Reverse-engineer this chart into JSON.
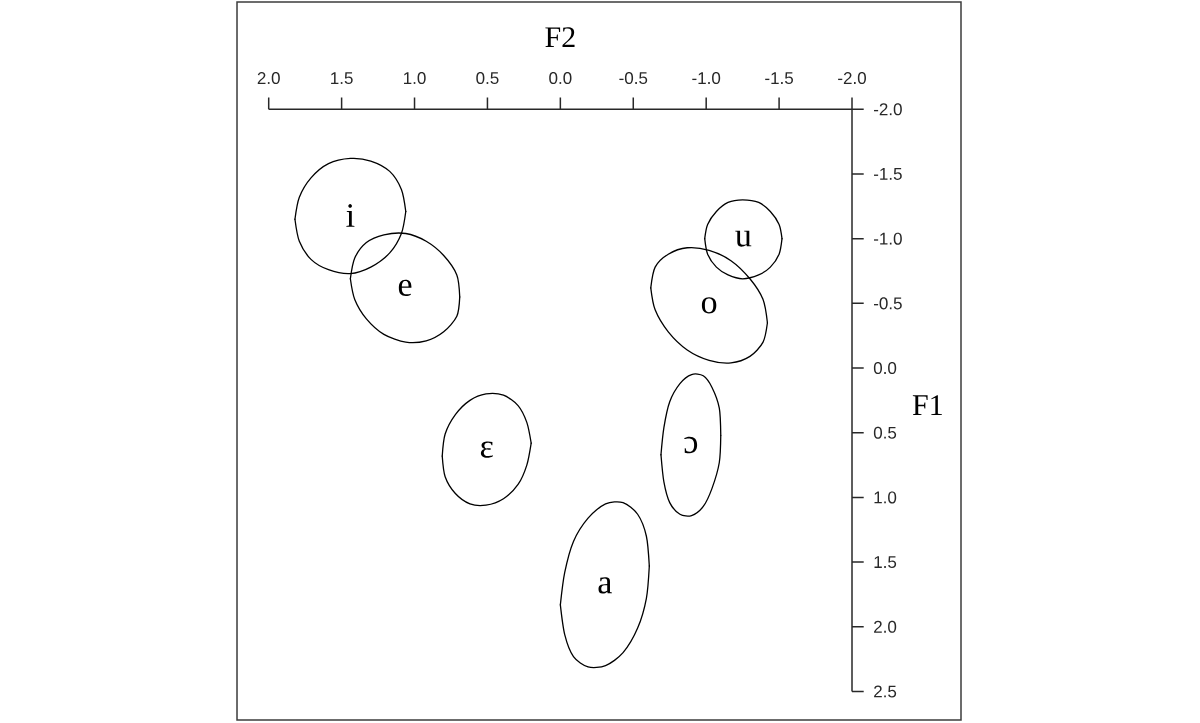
{
  "chart_data": {
    "type": "line",
    "xlabel": "F2",
    "ylabel": "F1",
    "xlim": [
      2.0,
      -2.0
    ],
    "ylim": [
      2.5,
      -2.0
    ],
    "xticks": [
      {
        "value": 2,
        "label": "2.0"
      },
      1.5,
      {
        "value": 1,
        "label": "1.0"
      },
      0.5,
      {
        "value": 0,
        "label": "0.0"
      },
      -0.5,
      {
        "value": -1,
        "label": "-1.0"
      },
      -1.5,
      {
        "value": -2,
        "label": "-2.0"
      }
    ],
    "yticks": [
      {
        "value": -2,
        "label": "-2.0"
      },
      -1.5,
      {
        "value": -1,
        "label": "-1.0"
      },
      -0.5,
      {
        "value": 0,
        "label": "0.0"
      },
      0.5,
      {
        "value": 1,
        "label": "1.0"
      },
      1.5,
      {
        "value": 2,
        "label": "2.0"
      },
      2.5
    ],
    "series": [
      {
        "name": "i",
        "color": "#000000",
        "x": [
          1.06,
          1.09,
          1.17,
          1.3,
          1.44,
          1.59,
          1.71,
          1.79,
          1.82
        ],
        "values": [
          -1.21,
          -1.04,
          -0.89,
          -0.78,
          -0.73,
          -0.76,
          -0.84,
          -0.98,
          -1.15
        ]
      },
      {
        "color": "#000000",
        "x": [
          1.82,
          1.79,
          1.71,
          1.59,
          1.44,
          1.3,
          1.17,
          1.09,
          1.06
        ],
        "values": [
          -1.15,
          -1.32,
          -1.47,
          -1.58,
          -1.62,
          -1.6,
          -1.52,
          -1.38,
          -1.21
        ]
      },
      {
        "name": "e",
        "color": "#000000",
        "x": [
          0.69,
          0.71,
          0.8,
          0.92,
          1.06,
          1.21,
          1.33,
          1.41,
          1.44
        ],
        "values": [
          -0.55,
          -0.4,
          -0.28,
          -0.21,
          -0.2,
          -0.26,
          -0.38,
          -0.53,
          -0.69
        ]
      },
      {
        "color": "#000000",
        "x": [
          1.44,
          1.41,
          1.33,
          1.21,
          1.06,
          0.92,
          0.8,
          0.71,
          0.69
        ],
        "values": [
          -0.69,
          -0.85,
          -0.97,
          -1.03,
          -1.04,
          -0.98,
          -0.87,
          -0.72,
          -0.55
        ]
      },
      {
        "name": "u",
        "color": "#000000",
        "x": [
          -1.52,
          -1.5,
          -1.44,
          -1.36,
          -1.25,
          -1.15,
          -1.07,
          -1.01,
          -0.99
        ],
        "values": [
          -1.0,
          -0.88,
          -0.78,
          -0.72,
          -0.69,
          -0.72,
          -0.78,
          -0.88,
          -1.0
        ]
      },
      {
        "color": "#000000",
        "x": [
          -0.99,
          -1.01,
          -1.07,
          -1.15,
          -1.25,
          -1.36,
          -1.44,
          -1.5,
          -1.52
        ],
        "values": [
          -1.0,
          -1.11,
          -1.21,
          -1.28,
          -1.3,
          -1.28,
          -1.21,
          -1.11,
          -1.0
        ]
      },
      {
        "name": "o",
        "color": "#000000",
        "x": [
          -1.42,
          -1.39,
          -1.3,
          -1.17,
          -1.02,
          -0.87,
          -0.74,
          -0.65,
          -0.62
        ],
        "values": [
          -0.35,
          -0.2,
          -0.09,
          -0.04,
          -0.06,
          -0.14,
          -0.28,
          -0.45,
          -0.62
        ]
      },
      {
        "color": "#000000",
        "x": [
          -0.62,
          -0.65,
          -0.74,
          -0.87,
          -1.02,
          -1.17,
          -1.3,
          -1.39,
          -1.42
        ],
        "values": [
          -0.62,
          -0.78,
          -0.88,
          -0.93,
          -0.91,
          -0.83,
          -0.69,
          -0.53,
          -0.35
        ]
      },
      {
        "name": "ɛ",
        "color": "#000000",
        "x": [
          0.2,
          0.23,
          0.29,
          0.39,
          0.51,
          0.62,
          0.72,
          0.79,
          0.81
        ],
        "values": [
          0.58,
          0.75,
          0.9,
          1.01,
          1.06,
          1.05,
          0.97,
          0.84,
          0.68
        ]
      },
      {
        "color": "#000000",
        "x": [
          0.81,
          0.79,
          0.72,
          0.62,
          0.51,
          0.39,
          0.29,
          0.23,
          0.2
        ],
        "values": [
          0.68,
          0.51,
          0.36,
          0.25,
          0.2,
          0.21,
          0.29,
          0.42,
          0.58
        ]
      },
      {
        "name": "ɔ",
        "color": "#000000",
        "x": [
          -1.1,
          -1.09,
          -1.04,
          -0.98,
          -0.9,
          -0.82,
          -0.75,
          -0.71,
          -0.69
        ],
        "values": [
          0.52,
          0.73,
          0.93,
          1.07,
          1.14,
          1.13,
          1.04,
          0.88,
          0.67
        ]
      },
      {
        "color": "#000000",
        "x": [
          -0.69,
          -0.71,
          -0.75,
          -0.82,
          -0.9,
          -0.98,
          -1.04,
          -1.09,
          -1.1
        ],
        "values": [
          0.67,
          0.46,
          0.26,
          0.12,
          0.05,
          0.06,
          0.15,
          0.31,
          0.52
        ]
      },
      {
        "name": "a",
        "color": "#000000",
        "x": [
          -0.61,
          -0.59,
          -0.53,
          -0.43,
          -0.31,
          -0.19,
          -0.09,
          -0.03,
          0.0
        ],
        "values": [
          1.53,
          1.78,
          2.01,
          2.2,
          2.3,
          2.31,
          2.23,
          2.06,
          1.83
        ]
      },
      {
        "color": "#000000",
        "x": [
          0.0,
          -0.03,
          -0.09,
          -0.19,
          -0.31,
          -0.43,
          -0.53,
          -0.59,
          -0.61
        ],
        "values": [
          1.83,
          1.58,
          1.34,
          1.16,
          1.05,
          1.04,
          1.13,
          1.3,
          1.53
        ]
      }
    ]
  }
}
